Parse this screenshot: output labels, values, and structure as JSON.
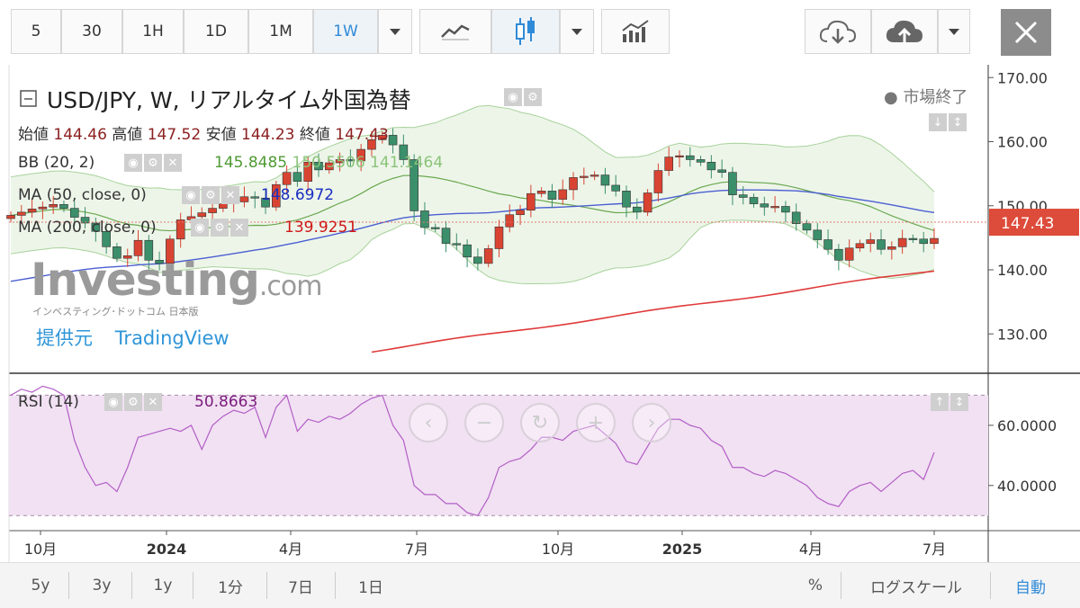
{
  "toolbar": {
    "intervals": [
      {
        "label": "5",
        "active": false
      },
      {
        "label": "30",
        "active": false
      },
      {
        "label": "1H",
        "active": false
      },
      {
        "label": "1D",
        "active": false
      },
      {
        "label": "1M",
        "active": false
      },
      {
        "label": "1W",
        "active": true
      }
    ],
    "chart_type_icons": [
      "line-chart-icon",
      "candlestick-icon",
      "indicators-icon"
    ],
    "cloud_icons": [
      "cloud-download-icon",
      "cloud-upload-icon"
    ],
    "close_icon": "close-icon"
  },
  "legend": {
    "title": "USD/JPY, W, リアルタイム外国為替",
    "ohlc": {
      "open_label": "始値",
      "open": "144.46",
      "high_label": "高値",
      "high": "147.52",
      "low_label": "安値",
      "low": "144.23",
      "close_label": "終値",
      "close": "147.43"
    },
    "bb": {
      "label": "BB (20, 2)",
      "v1": "145.8485",
      "v2": "150.5506",
      "v3": "141.1464"
    },
    "ma50": {
      "label": "MA (50, close, 0)",
      "value": "148.6972"
    },
    "ma200": {
      "label": "MA (200, close, 0)",
      "value": "139.9251"
    },
    "market_status": "市場終了",
    "provided_by": "提供元",
    "provider": "TradingView"
  },
  "watermark": {
    "brand": "Investing",
    "suffix": ".com",
    "sub": "インベスティング･ドットコム 日本版"
  },
  "price_axis": {
    "ticks": [
      "170.00",
      "160.00",
      "150.00",
      "140.00",
      "130.00"
    ],
    "current_price": "147.43"
  },
  "rsi": {
    "label": "RSI (14)",
    "value": "50.8663",
    "ticks": [
      "60.0000",
      "40.0000"
    ]
  },
  "time_axis": {
    "labels": [
      "10月",
      "2024",
      "4月",
      "7月",
      "10月",
      "2025",
      "4月",
      "7月"
    ]
  },
  "bottom_bar": {
    "ranges": [
      "5y",
      "3y",
      "1y",
      "1分",
      "7日",
      "1日"
    ],
    "right": [
      "%",
      "ログスケール",
      "自動"
    ]
  },
  "colors": {
    "up": "#d94432",
    "down": "#3b8f6b",
    "bb": "#6aa84f",
    "ma50": "#4b5fd1",
    "ma200": "#e03a3a",
    "rsi": "#b35ec5",
    "accent": "#2f8ad8"
  },
  "chart_data": [
    {
      "type": "candlestick",
      "title": "USD/JPY, W, リアルタイム外国為替",
      "x_range": [
        "2023-09",
        "2025-07"
      ],
      "ylim": [
        124,
        172
      ],
      "close_series": [
        148.5,
        149.0,
        149.5,
        149.8,
        150.2,
        149.6,
        148.2,
        147.3,
        146.0,
        143.6,
        141.8,
        142.2,
        144.6,
        141.5,
        141.0,
        144.8,
        147.8,
        148.3,
        148.9,
        149.6,
        150.3,
        150.6,
        151.4,
        151.2,
        149.8,
        153.3,
        155.2,
        153.8,
        156.8,
        155.6,
        156.7,
        157.2,
        157.0,
        158.8,
        160.3,
        161.0,
        159.5,
        157.2,
        149.2,
        146.6,
        146.5,
        144.1,
        143.9,
        142.0,
        141.0,
        143.3,
        146.7,
        148.6,
        149.3,
        151.9,
        152.3,
        151.0,
        152.5,
        154.4,
        154.6,
        154.8,
        153.2,
        152.3,
        149.8,
        149.0,
        152.0,
        155.5,
        157.6,
        157.8,
        157.2,
        156.8,
        155.6,
        155.2,
        151.7,
        151.3,
        150.3,
        149.8,
        149.9,
        149.0,
        147.2,
        146.2,
        144.7,
        143.2,
        141.5,
        143.4,
        144.1,
        144.7,
        143.2,
        143.6,
        144.9,
        144.8,
        144.1,
        144.9
      ],
      "last": {
        "open": 144.46,
        "high": 147.52,
        "low": 144.23,
        "close": 147.43
      },
      "overlays": [
        {
          "name": "BB (20, 2)",
          "values": [
            145.8485,
            150.5506,
            141.1464
          ]
        },
        {
          "name": "MA (50, close, 0)",
          "value": 148.6972
        },
        {
          "name": "MA (200, close, 0)",
          "value": 139.9251
        }
      ]
    },
    {
      "type": "line",
      "title": "RSI (14)",
      "ylim": [
        25,
        77
      ],
      "values": [
        70,
        72,
        71,
        73,
        72,
        70,
        55,
        46,
        40,
        41,
        38,
        46,
        56,
        57,
        58,
        59,
        58,
        60,
        52,
        60,
        63,
        65,
        64,
        66,
        56,
        66,
        70,
        58,
        62,
        61,
        63,
        62,
        64,
        67,
        69,
        70,
        60,
        55,
        40,
        37,
        37,
        34,
        34,
        31,
        30,
        36,
        46,
        48,
        49,
        52,
        56,
        56,
        55,
        58,
        59,
        60,
        57,
        54,
        48,
        47,
        53,
        59,
        62,
        62,
        60,
        59,
        55,
        53,
        46,
        46,
        44,
        43,
        45,
        44,
        42,
        40,
        36,
        34,
        33,
        38,
        40,
        41,
        38,
        41,
        44,
        45,
        42,
        51
      ]
    }
  ]
}
